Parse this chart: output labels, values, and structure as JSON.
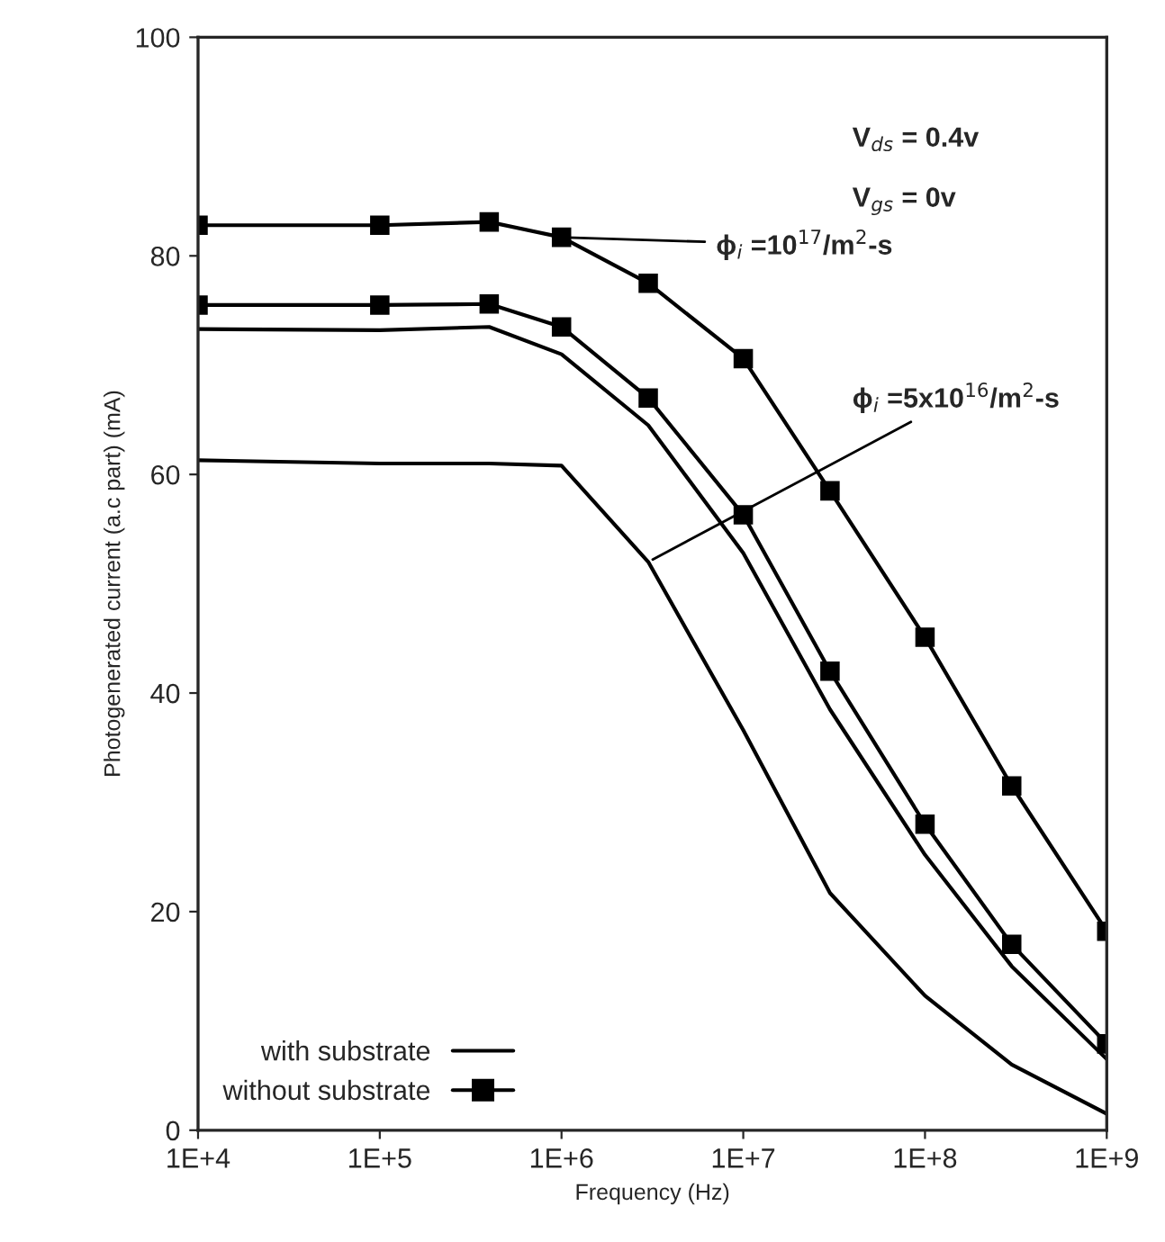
{
  "chart_data": {
    "type": "line",
    "xlabel": "Frequency (Hz)",
    "ylabel": "Photogenerated current (a.c part) (mA)",
    "x": [
      10000,
      100000,
      400000,
      1000000,
      3000000,
      10000000,
      30000000,
      100000000,
      300000000,
      1000000000
    ],
    "series": [
      {
        "name": "with substrate",
        "color": "#000000",
        "marker": "none",
        "values": [
          73.3,
          73.2,
          73.5,
          71.0,
          64.5,
          52.8,
          38.5,
          25.2,
          15.0,
          6.5
        ]
      },
      {
        "name": "without substrate",
        "color": "#000000",
        "marker": "square",
        "values": [
          82.8,
          82.8,
          83.1,
          81.7,
          77.5,
          70.6,
          58.5,
          45.1,
          31.5,
          18.2
        ]
      },
      {
        "color": "#000000",
        "marker": "square",
        "values": [
          75.5,
          75.5,
          75.6,
          73.5,
          67.0,
          56.3,
          42.0,
          28.0,
          17.0,
          7.9
        ]
      },
      {
        "color": "#000000",
        "marker": "none",
        "values": [
          61.3,
          61.0,
          61.0,
          60.8,
          52.0,
          36.6,
          21.7,
          12.3,
          6.0,
          1.5
        ]
      }
    ],
    "log": "x",
    "xlim": [
      10000,
      1000000000
    ],
    "xticks": [
      {
        "value": 10000,
        "label": "1E+4"
      },
      {
        "value": 100000,
        "label": "1E+5"
      },
      {
        "value": 1000000,
        "label": "1E+6"
      },
      {
        "value": 10000000,
        "label": "1E+7"
      },
      {
        "value": 100000000,
        "label": "1E+8"
      },
      {
        "value": 1000000000,
        "label": "1E+9"
      }
    ],
    "ylim": [
      0,
      100
    ],
    "yticks": [
      0,
      20,
      40,
      60,
      80,
      100
    ],
    "grid": false,
    "legend": "bottom left",
    "line_style": "solid",
    "annotations": [
      "V$_{ds}$ = 0.4v",
      "V$_{gs}$ = 0v",
      {
        "text": "ϕ$_{i}$ =10$^{17}$/m$^{2}$-s",
        "x": 1000000,
        "y": 81.7
      },
      {
        "text": "ϕ$_{i}$ =5x10$^{16}$/m$^{2}$-s",
        "x": 3000000,
        "y": 52.0
      }
    ]
  }
}
